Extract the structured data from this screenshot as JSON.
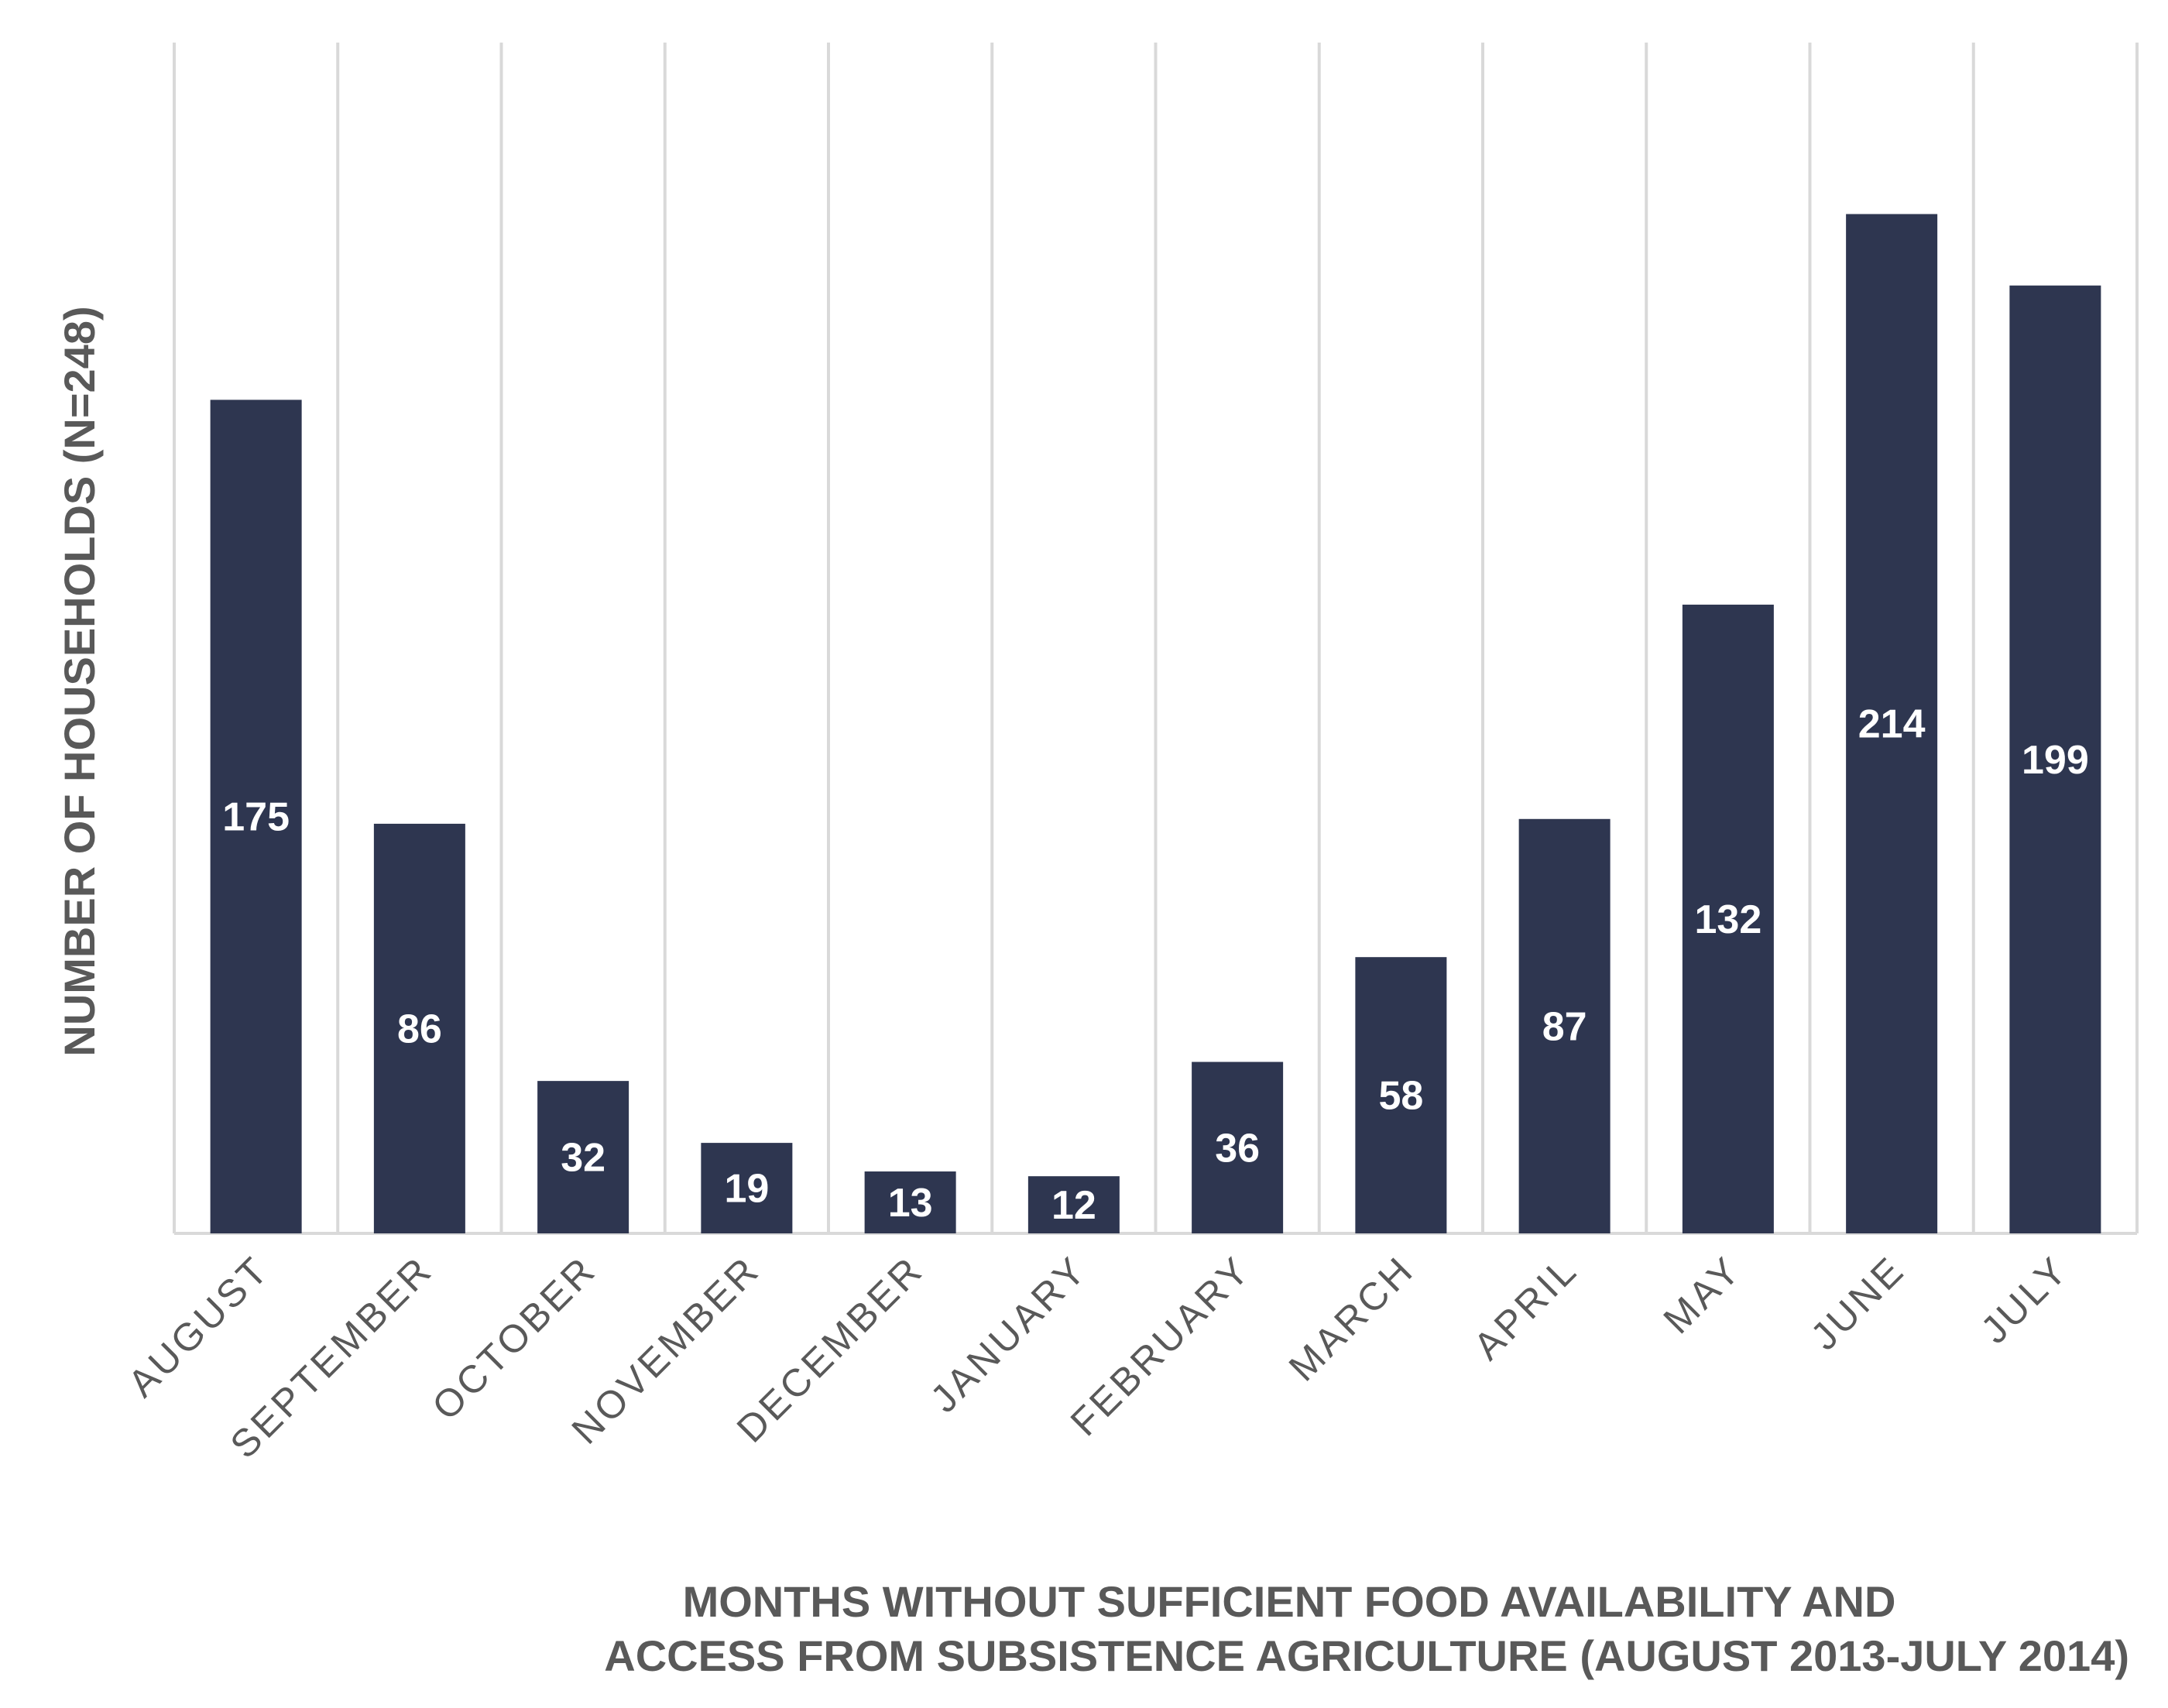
{
  "chart_data": {
    "type": "bar",
    "categories": [
      "AUGUST",
      "SEPTEMBER",
      "OCTOBER",
      "NOVEMBER",
      "DECEMBER",
      "JANUARY",
      "FEBRUARY",
      "MARCH",
      "APRIL",
      "MAY",
      "JUNE",
      "JULY"
    ],
    "values": [
      175,
      86,
      32,
      19,
      13,
      12,
      36,
      58,
      87,
      132,
      214,
      199
    ],
    "title": "",
    "ylabel": "NUMBER OF HOUSEHOLDS (N=248)",
    "xlabel_lines": [
      "MONTHS WITHOUT SUFFICIENT FOOD AVAILABILITY AND",
      "ACCESS FROM SUBSISTENCE AGRICULTURE (AUGUST 2013-JULY 2014)"
    ],
    "ylim": [
      0,
      250
    ],
    "grid": "vertical",
    "data_labels": "inside-center",
    "colors": {
      "bar": "#2e3650",
      "label": "#ffffff",
      "grid": "#d9d9d9",
      "text": "#595959"
    }
  }
}
